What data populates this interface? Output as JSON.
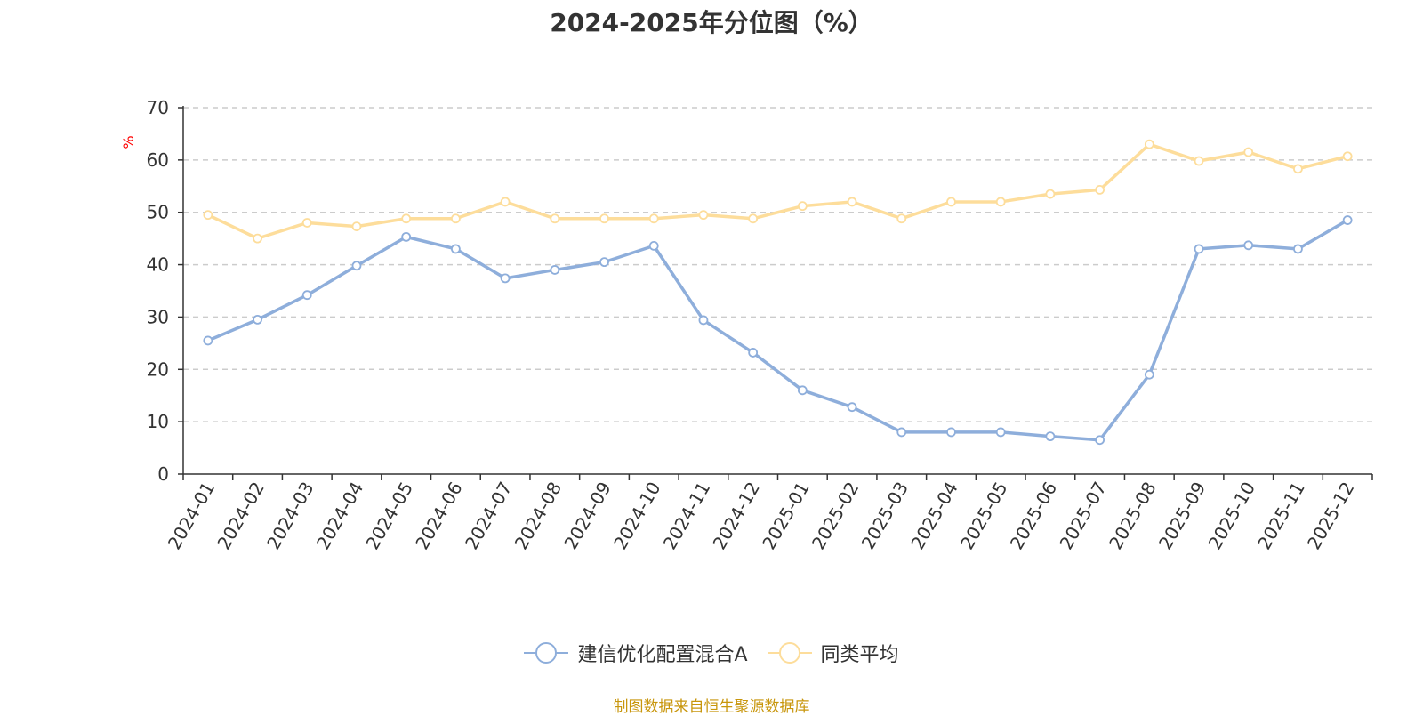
{
  "chart_data": {
    "type": "line",
    "title": "2024-2025年分位图（%）",
    "ylabel": "%",
    "xlabel": "",
    "ylim": [
      0,
      70
    ],
    "yticks": [
      0,
      10,
      20,
      30,
      40,
      50,
      60,
      70
    ],
    "grid": "horizontal dashed",
    "legend_position": "bottom",
    "categories": [
      "2024-01",
      "2024-02",
      "2024-03",
      "2024-04",
      "2024-05",
      "2024-06",
      "2024-07",
      "2024-08",
      "2024-09",
      "2024-10",
      "2024-11",
      "2024-12",
      "2025-01",
      "2025-02",
      "2025-03",
      "2025-04",
      "2025-05",
      "2025-06",
      "2025-07",
      "2025-08",
      "2025-09",
      "2025-10",
      "2025-11",
      "2025-12"
    ],
    "series": [
      {
        "name": "建信优化配置混合A",
        "color": "#8eaedb",
        "values": [
          25.5,
          29.5,
          34.2,
          39.8,
          45.3,
          43.0,
          37.4,
          39.0,
          40.5,
          43.6,
          29.4,
          23.2,
          16.0,
          12.8,
          8.0,
          8.0,
          8.0,
          7.2,
          6.5,
          19.0,
          43.0,
          43.7,
          43.0,
          48.5
        ]
      },
      {
        "name": "同类平均",
        "color": "#fddd9b",
        "values": [
          49.5,
          45.0,
          48.0,
          47.3,
          48.8,
          48.8,
          52.0,
          48.8,
          48.8,
          48.8,
          49.5,
          48.8,
          51.2,
          52.0,
          48.8,
          52.0,
          52.0,
          53.5,
          54.3,
          63.0,
          59.8,
          61.5,
          58.3,
          60.7
        ]
      }
    ]
  },
  "source_text": "制图数据来自恒生聚源数据库"
}
